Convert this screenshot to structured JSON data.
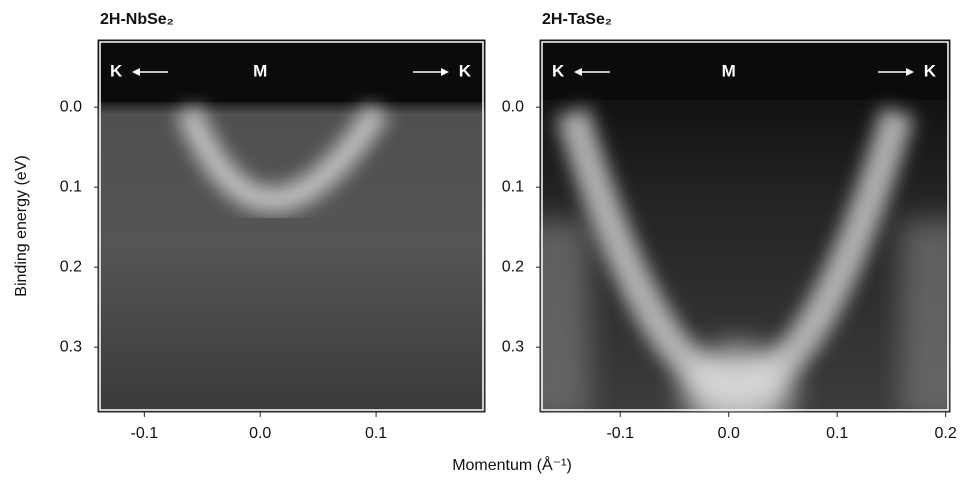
{
  "chart_data": [
    {
      "type": "heatmap",
      "title": "2H-NbSe₂",
      "ylabel": "Binding energy (eV)",
      "xlabel": "Momentum (Å⁻¹)",
      "xlim": [
        -0.14,
        0.194
      ],
      "ylim": [
        -0.084,
        0.381
      ],
      "y_inverted": true,
      "xticks": [
        -0.1,
        {
          "value": 0,
          "label": "0.0"
        },
        0.1
      ],
      "yticks": [
        {
          "value": 0,
          "label": "0.0"
        },
        0.1,
        0.2,
        0.3
      ],
      "annotations": [
        "K",
        "M",
        "K"
      ]
    },
    {
      "type": "heatmap",
      "title": "2H-TaSe₂",
      "xlim": [
        -0.174,
        0.204
      ],
      "ylim": [
        -0.084,
        0.381
      ],
      "y_inverted": true,
      "xticks": [
        -0.1,
        {
          "value": 0,
          "label": "0.0"
        },
        0.1,
        0.2
      ],
      "yticks": [
        {
          "value": 0,
          "label": "0.0"
        },
        0.1,
        0.2,
        0.3
      ],
      "annotations": [
        "K",
        "M",
        "K"
      ]
    }
  ]
}
